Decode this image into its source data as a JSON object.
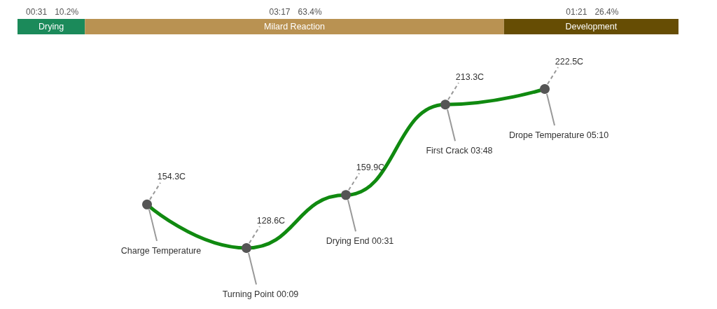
{
  "chart_data": [
    {
      "type": "bar",
      "orientation": "horizontal",
      "stacked": true,
      "categories": [
        null
      ],
      "series": [
        {
          "name": "Drying",
          "color": "#1b8a5a",
          "values": [
            10.2
          ],
          "value_labels": [
            "10.2%"
          ]
        },
        {
          "name": "Milard Reaction",
          "color": "#b99252",
          "values": [
            63.4
          ],
          "value_labels": [
            "63.4%"
          ]
        },
        {
          "name": "Development",
          "color": "#664d04",
          "values": [
            26.4
          ],
          "value_labels": [
            "26.4%"
          ]
        }
      ],
      "annotations": [
        "00:31",
        "03:17",
        "01:21"
      ],
      "tick_labels": false
    },
    {
      "type": "line",
      "categories": [
        null,
        null,
        null,
        null,
        null
      ],
      "series": [
        {
          "color": "#108a10",
          "colors": [
            "#555555",
            "#555555",
            "#555555",
            "#555555",
            "#555555"
          ],
          "values": [
            154.3,
            128.6,
            159.9,
            213.3,
            222.5
          ],
          "value_labels": [
            "154.3C",
            "128.6C",
            "159.9C",
            "213.3C",
            "222.5C"
          ]
        }
      ],
      "annotations": [
        "Charge Temperature",
        "Turning Point 00:09",
        "Drying End 00:31",
        "First Crack 03:48",
        "Drope Temperature 05:10"
      ],
      "marker": "circle",
      "line_style": "solid",
      "tick_labels": false
    }
  ]
}
